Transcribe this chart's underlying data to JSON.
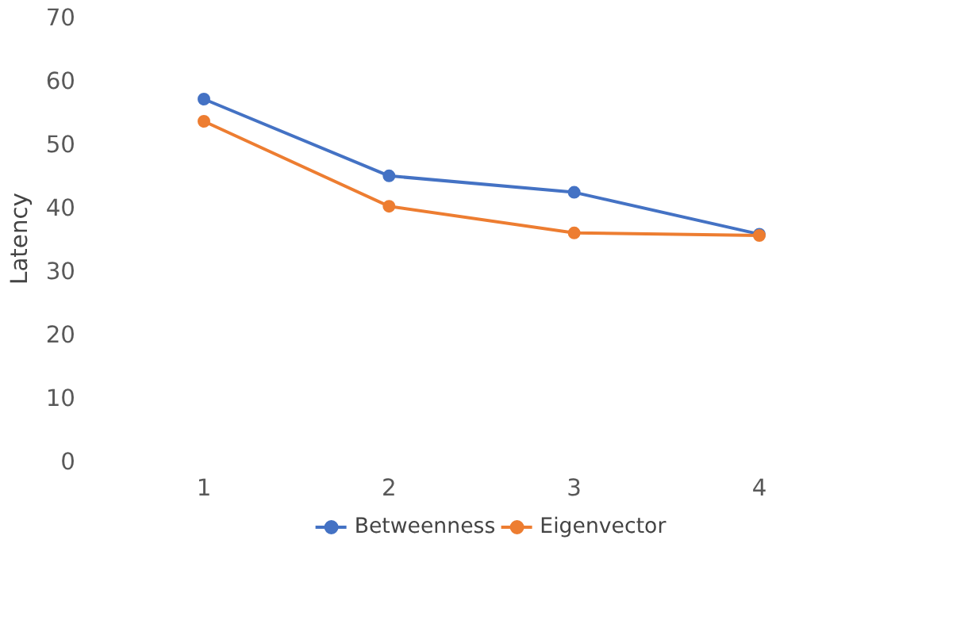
{
  "chart_data": {
    "type": "line",
    "ylabel": "Latency",
    "categories": [
      "1",
      "2",
      "3",
      "4"
    ],
    "series": [
      {
        "name": "Betweenness",
        "color": "#4472c4",
        "values": [
          57.0,
          44.9,
          42.3,
          35.7
        ]
      },
      {
        "name": "Eigenvector",
        "color": "#ed7d31",
        "values": [
          53.5,
          40.1,
          35.9,
          35.5
        ]
      }
    ],
    "ylim": [
      0,
      70
    ],
    "yticks": [
      0,
      10,
      20,
      30,
      40,
      50,
      60,
      70
    ],
    "grid": false,
    "legend": "bottom",
    "marker": "circle",
    "line_style": "solid"
  }
}
